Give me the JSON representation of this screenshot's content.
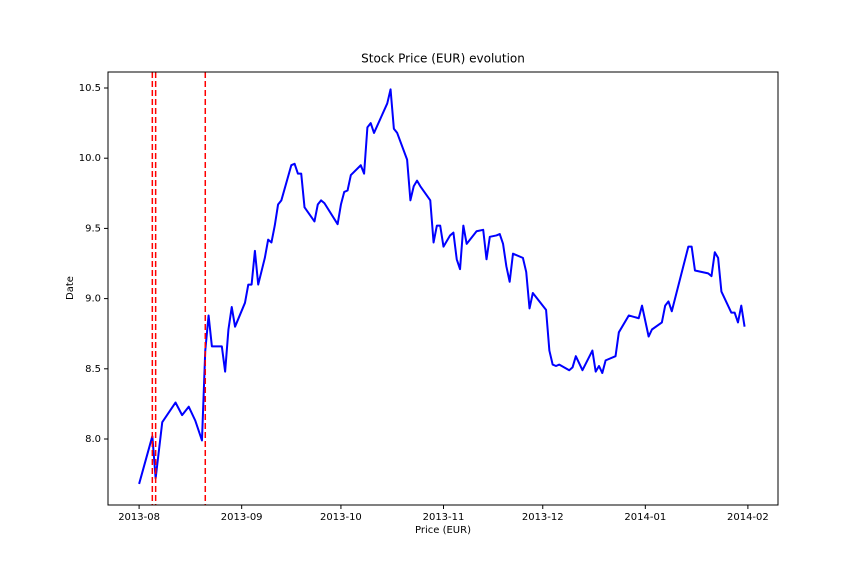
{
  "chart_data": {
    "type": "line",
    "title": "Stock Price (EUR) evolution",
    "xlabel": "Price (EUR)",
    "ylabel": "Date",
    "color": "#0000ff",
    "x": [
      15918,
      15922,
      15923,
      15924,
      15925,
      15929,
      15931,
      15933,
      15935,
      15937,
      15938,
      15939,
      15940,
      15943,
      15944,
      15945,
      15946,
      15947,
      15950,
      15951,
      15952,
      15953,
      15954,
      15956,
      15957,
      15958,
      15959,
      15960,
      15961,
      15964,
      15965,
      15966,
      15967,
      15968,
      15971,
      15972,
      15973,
      15974,
      15978,
      15979,
      15980,
      15981,
      15982,
      15985,
      15986,
      15987,
      15988,
      15989,
      15993,
      15994,
      15995,
      15996,
      15999,
      16000,
      16001,
      16002,
      16003,
      16006,
      16007,
      16008,
      16009,
      16010,
      16012,
      16013,
      16014,
      16015,
      16016,
      16017,
      16020,
      16022,
      16023,
      16024,
      16026,
      16027,
      16028,
      16029,
      16030,
      16031,
      16034,
      16035,
      16036,
      16037,
      16041,
      16042,
      16043,
      16044,
      16045,
      16048,
      16049,
      16050,
      16052,
      16055,
      16056,
      16057,
      16058,
      16059,
      16062,
      16063,
      16066,
      16069,
      16070,
      16072,
      16073,
      16076,
      16077,
      16078,
      16079,
      16084,
      16085,
      16086,
      16090,
      16091,
      16092,
      16093,
      16094,
      16097,
      16098,
      16099,
      16100,
      16101
    ],
    "values": [
      7.68,
      8.02,
      7.72,
      7.92,
      8.12,
      8.26,
      8.17,
      8.23,
      8.13,
      7.99,
      8.63,
      8.88,
      8.66,
      8.66,
      8.48,
      8.78,
      8.94,
      8.8,
      8.97,
      9.1,
      9.1,
      9.34,
      9.1,
      9.29,
      9.42,
      9.4,
      9.52,
      9.67,
      9.7,
      9.95,
      9.96,
      9.89,
      9.89,
      9.65,
      9.55,
      9.67,
      9.7,
      9.68,
      9.53,
      9.67,
      9.76,
      9.77,
      9.88,
      9.95,
      9.89,
      10.22,
      10.25,
      10.18,
      10.39,
      10.49,
      10.21,
      10.18,
      9.99,
      9.7,
      9.8,
      9.84,
      9.8,
      9.7,
      9.4,
      9.52,
      9.52,
      9.37,
      9.45,
      9.47,
      9.28,
      9.21,
      9.52,
      9.39,
      9.48,
      9.49,
      9.28,
      9.44,
      9.45,
      9.46,
      9.39,
      9.23,
      9.12,
      9.32,
      9.29,
      9.19,
      8.93,
      9.04,
      8.92,
      8.63,
      8.53,
      8.52,
      8.53,
      8.49,
      8.51,
      8.59,
      8.49,
      8.63,
      8.48,
      8.52,
      8.47,
      8.56,
      8.59,
      8.76,
      8.88,
      8.86,
      8.95,
      8.73,
      8.78,
      8.83,
      8.95,
      8.98,
      8.91,
      9.37,
      9.37,
      9.2,
      9.18,
      9.16,
      9.33,
      9.29,
      9.05,
      8.9,
      8.9,
      8.83,
      8.95,
      8.8
    ],
    "vlines": [
      15922,
      15923,
      15938
    ],
    "vline_color": "#ff0000",
    "xlim": [
      15908.6,
      16111.1
    ],
    "ylim": [
      7.53,
      10.614
    ],
    "xticks": [
      {
        "value": 15918,
        "label": "2013-08"
      },
      {
        "value": 15949,
        "label": "2013-09"
      },
      {
        "value": 15979,
        "label": "2013-10"
      },
      {
        "value": 16010,
        "label": "2013-11"
      },
      {
        "value": 16040,
        "label": "2013-12"
      },
      {
        "value": 16071,
        "label": "2014-01"
      },
      {
        "value": 16102,
        "label": "2014-02"
      }
    ],
    "yticks": [
      {
        "value": 8,
        "label": "8.0"
      },
      8.5,
      {
        "value": 9,
        "label": "9.0"
      },
      9.5,
      {
        "value": 10,
        "label": "10.0"
      },
      10.5
    ]
  }
}
